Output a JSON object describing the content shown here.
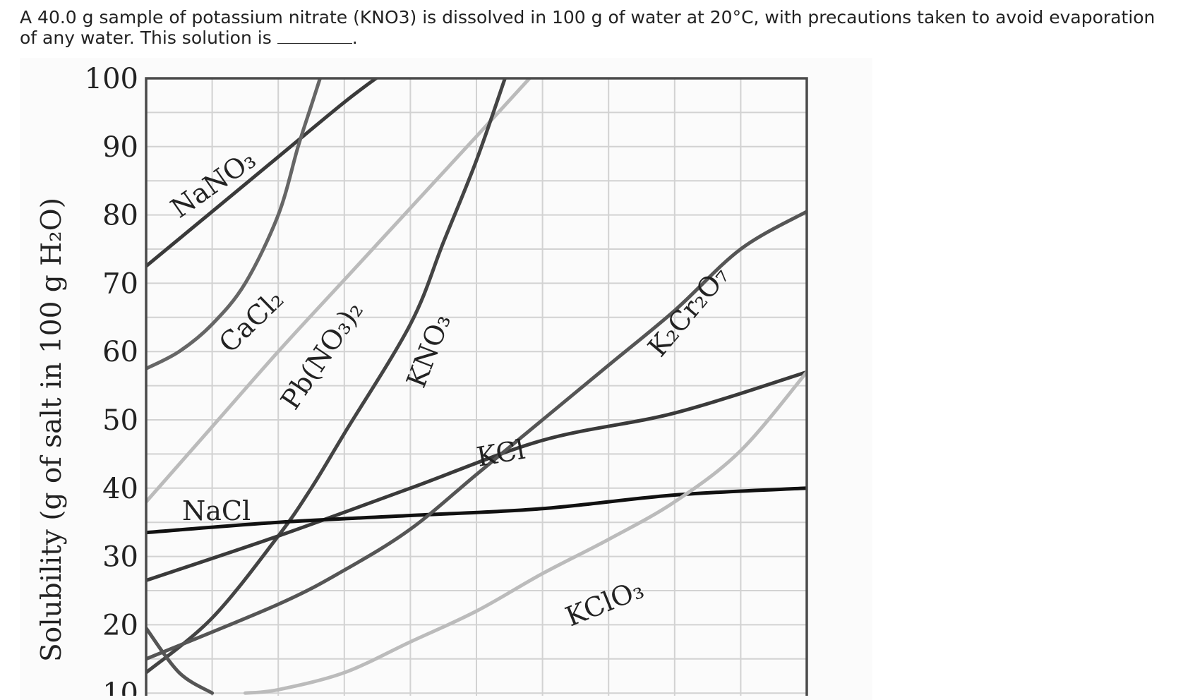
{
  "question": {
    "text_before": "A 40.0 g sample of potassium nitrate (KNO3) is dissolved in 100 g of water at 20°C, with precautions taken to avoid evaporation of any water. This solution is",
    "text_after": "."
  },
  "chart_data": {
    "type": "line",
    "ylabel": "Solubility (g of salt in 100 g H₂O)",
    "ylim": [
      10,
      100
    ],
    "yticks": [
      "100",
      "90",
      "80",
      "70",
      "60",
      "50",
      "40",
      "30",
      "20",
      "10"
    ],
    "xlim": [
      0,
      100
    ],
    "grid": true,
    "series": [
      {
        "name": "NaNO₃",
        "color": "#3a3a3a",
        "x": [
          0,
          10,
          20,
          30,
          35.5
        ],
        "y": [
          72.5,
          80.5,
          88.5,
          96.5,
          100.5
        ]
      },
      {
        "name": "CaCl₂",
        "color": "#666666",
        "x": [
          0,
          5,
          10,
          15,
          20,
          23,
          25,
          26.5
        ],
        "y": [
          57.5,
          60,
          64,
          70,
          80,
          90,
          96,
          100.5
        ]
      },
      {
        "name": "Pb(NO₃)₂",
        "color": "#bbbbbb",
        "x": [
          0,
          10,
          20,
          30,
          40,
          50,
          58.5
        ],
        "y": [
          38,
          49,
          60,
          70.5,
          81,
          91.5,
          100.5
        ]
      },
      {
        "name": "KNO₃",
        "color": "#444444",
        "x": [
          0,
          10,
          20,
          25,
          30,
          40,
          45,
          50,
          54.5
        ],
        "y": [
          13,
          21,
          33,
          40,
          48,
          64,
          76,
          88,
          100.5
        ]
      },
      {
        "name": "KCl",
        "color": "#3a3a3a",
        "x": [
          0,
          20,
          40,
          60,
          80,
          100
        ],
        "y": [
          26.5,
          33,
          40,
          47,
          51,
          57
        ]
      },
      {
        "name": "NaCl",
        "color": "#111111",
        "x": [
          0,
          20,
          40,
          60,
          80,
          100
        ],
        "y": [
          33.5,
          35,
          36,
          37,
          39,
          40
        ]
      },
      {
        "name": "K₂Cr₂O₇",
        "color": "#555555",
        "x": [
          0,
          20,
          30,
          40,
          50,
          60,
          70,
          80,
          90,
          100
        ],
        "y": [
          15,
          23,
          28,
          34,
          42,
          50,
          58,
          66,
          75,
          80.5
        ]
      },
      {
        "name": "KClO₃",
        "color": "#bbbbbb",
        "x": [
          15,
          20,
          30,
          40,
          50,
          60,
          70,
          80,
          90,
          100
        ],
        "y": [
          10,
          10.5,
          13,
          17.5,
          22,
          27.5,
          32.5,
          38,
          45.5,
          57
        ]
      },
      {
        "name": "",
        "color": "#555555",
        "x": [
          0,
          5,
          10
        ],
        "y": [
          19.5,
          13,
          10
        ]
      }
    ],
    "curve_labels": [
      "NaNO₃",
      "CaCl₂",
      "Pb(NO₃)₂",
      "KNO₃",
      "KCl",
      "NaCl",
      "K₂Cr₂O₇",
      "KClO₃"
    ]
  }
}
